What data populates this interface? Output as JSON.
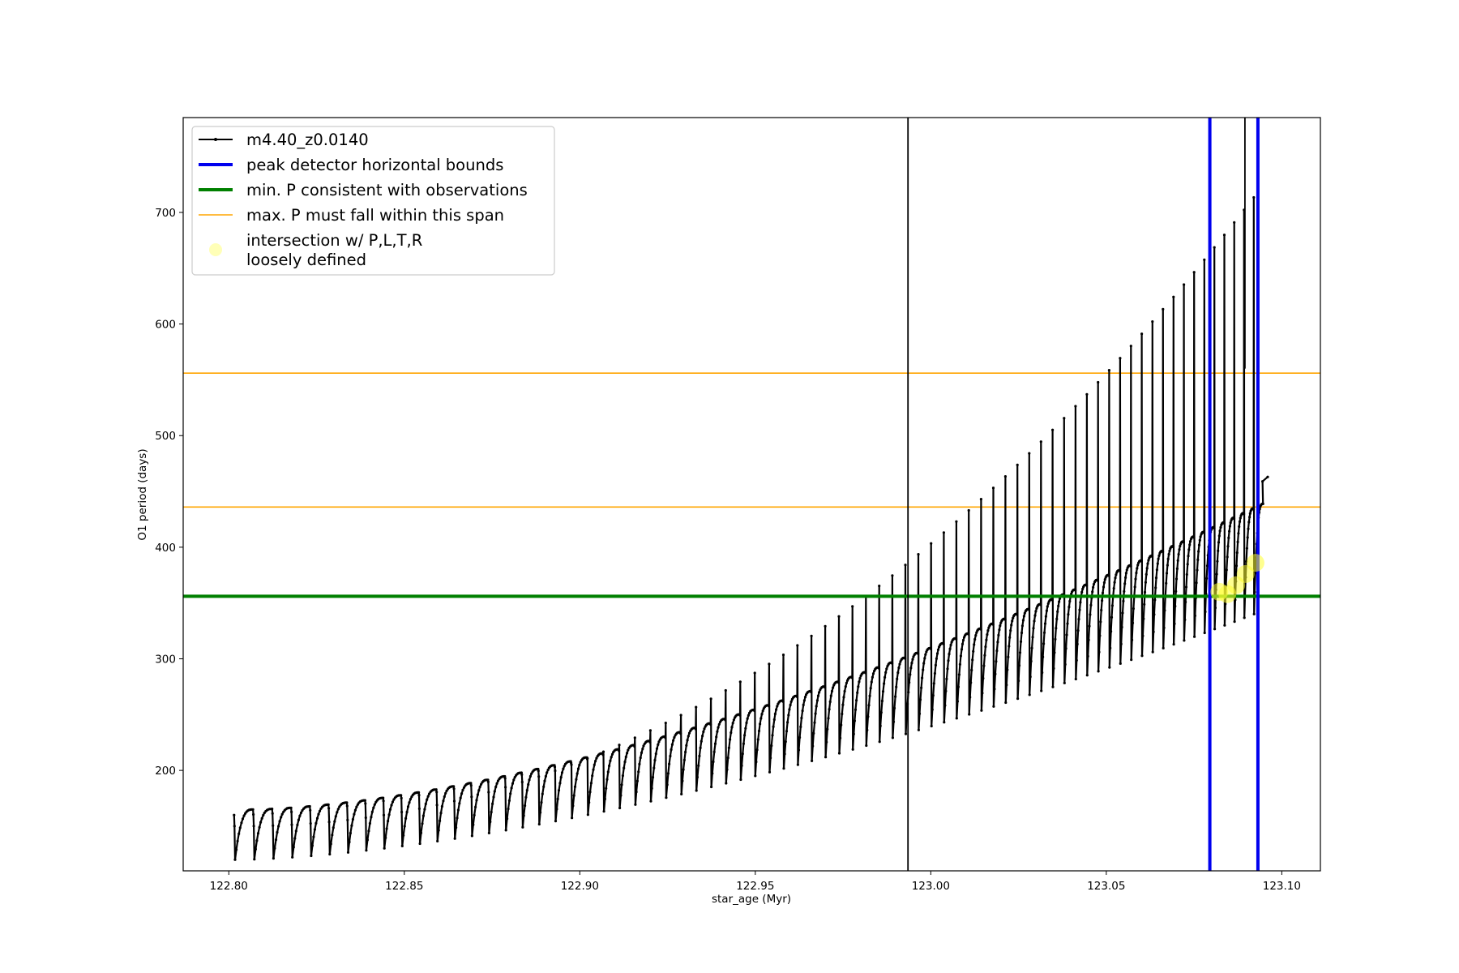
{
  "chart_data": {
    "type": "line",
    "title": "",
    "xlabel": "star_age (Myr)",
    "ylabel": "O1 period (days)",
    "xlim": [
      122.787,
      123.111
    ],
    "ylim": [
      110,
      785
    ],
    "xticks": [
      122.8,
      122.85,
      122.9,
      122.95,
      123.0,
      123.05,
      123.1
    ],
    "xtick_labels": [
      "122.80",
      "122.85",
      "122.90",
      "122.95",
      "123.00",
      "123.05",
      "123.10"
    ],
    "yticks": [
      200,
      300,
      400,
      500,
      600,
      700
    ],
    "ytick_labels": [
      "200",
      "300",
      "400",
      "500",
      "600",
      "700"
    ],
    "grid": false,
    "legend_position": "top-left",
    "series": [
      {
        "name": "m4.40_z0.0140",
        "color": "#000000",
        "style": "line-with-dots",
        "description_points": {
          "start_age": 122.8015,
          "pulse_spacing_start": 0.0055,
          "pulse_spacing_end": 0.0027,
          "pulse_peaks_start": 150,
          "pulse_peaks_end": 730,
          "pulse_mins_start": 120,
          "pulse_mins_end": 345,
          "plateau_start": 165,
          "plateau_end": 445,
          "end_age": 123.096,
          "end_value": 463
        }
      },
      {
        "name": "peak detector horizontal bounds",
        "color": "#0000ee",
        "type": "vline",
        "x": [
          123.0795,
          123.0932
        ]
      },
      {
        "name": "min. P consistent with observations",
        "color": "#008000",
        "type": "hline",
        "y": [
          356
        ]
      },
      {
        "name": "max. P must fall within this span",
        "color": "#ffa500",
        "type": "hline",
        "y": [
          436,
          556
        ]
      },
      {
        "name": "intersection w/ P,L,T,R\nloosely defined",
        "color": "#ffff66",
        "type": "scatter",
        "x": [
          123.0822,
          123.0845,
          123.087,
          123.0897,
          123.0925
        ],
        "y": [
          360,
          358,
          366,
          376,
          386
        ]
      }
    ],
    "extra_vlines": [
      {
        "x": 122.9935,
        "color": "#000000"
      },
      {
        "x": 123.0895,
        "color": "#000000",
        "ymin": 560
      }
    ],
    "legend": [
      {
        "label": "m4.40_z0.0140",
        "kind": "line-dot",
        "color": "#000000"
      },
      {
        "label": "peak detector horizontal bounds",
        "kind": "line-thick",
        "color": "#0000ee"
      },
      {
        "label": "min. P consistent with observations",
        "kind": "line-thick",
        "color": "#008000"
      },
      {
        "label": "max. P must fall within this span",
        "kind": "line-thin",
        "color": "#ffa500"
      },
      {
        "label": "intersection w/ P,L,T,R",
        "label2": "loosely defined",
        "kind": "marker",
        "color": "#ffff99"
      }
    ]
  }
}
